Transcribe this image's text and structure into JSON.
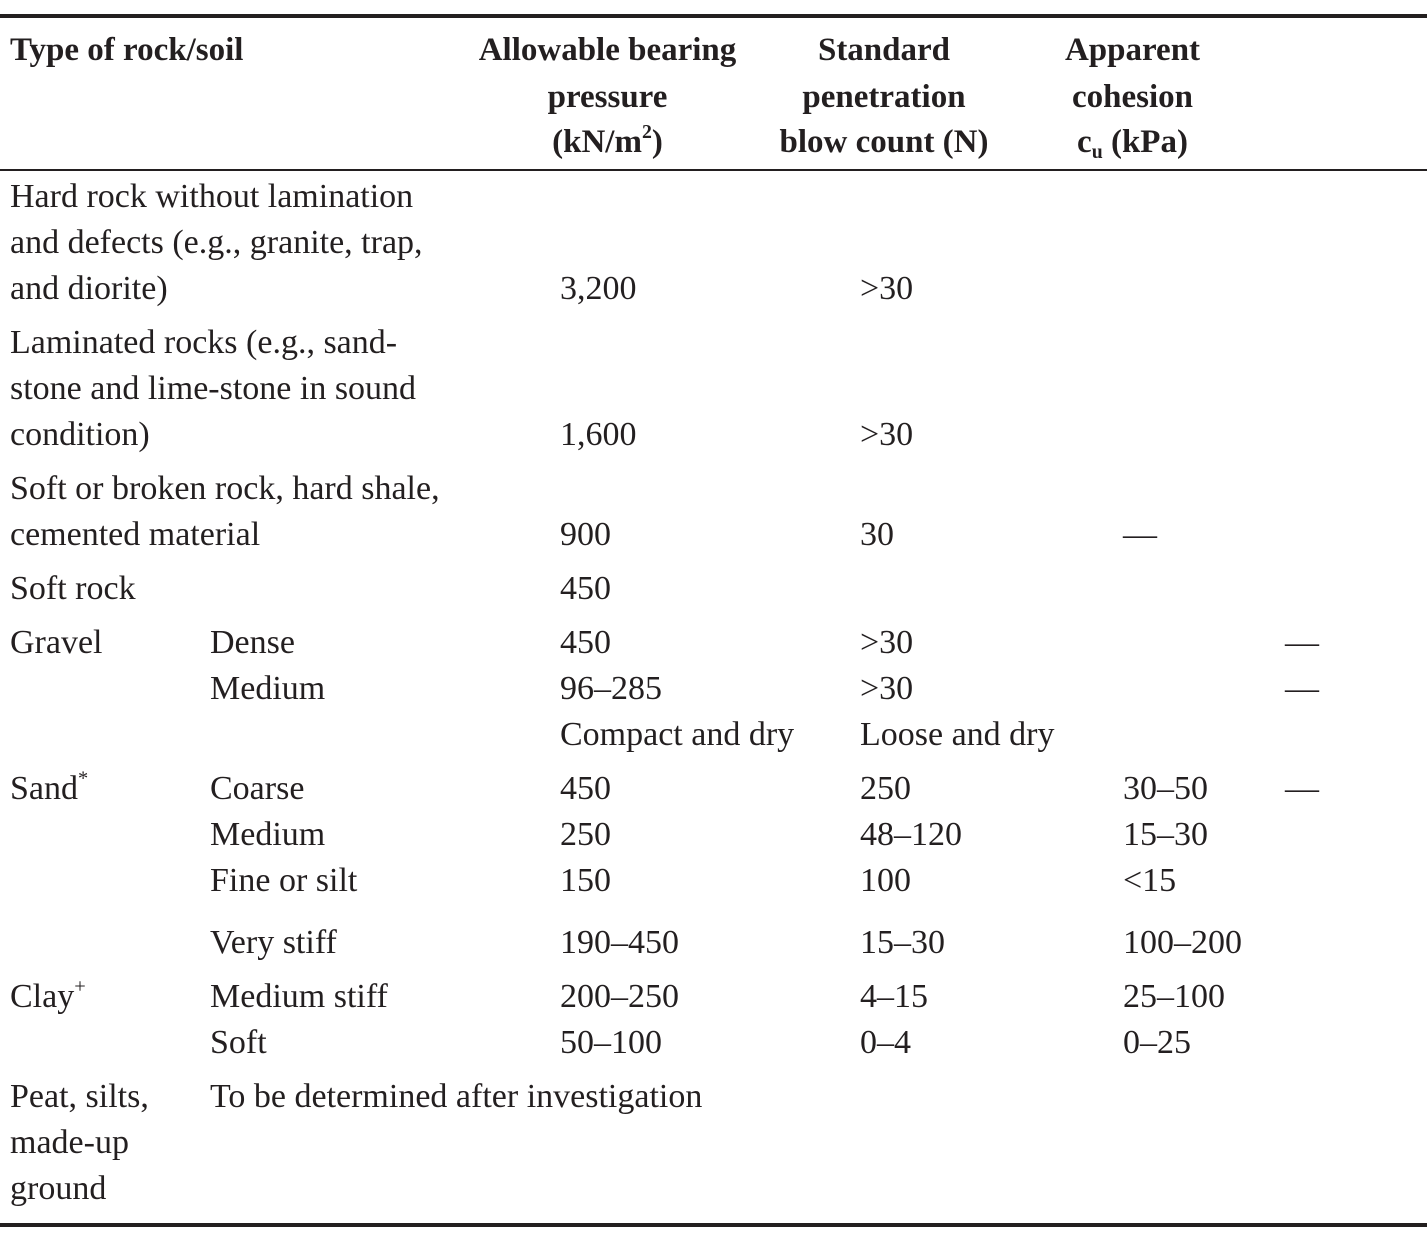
{
  "table": {
    "header": [
      {
        "lines": [
          "Type of rock/soil"
        ]
      },
      {
        "lines": [
          "Allowable bearing",
          "pressure",
          {
            "text": "(kN/m",
            "sup": "2",
            "after": ")"
          }
        ]
      },
      {
        "lines": [
          "Standard",
          "penetration",
          "blow count (N)"
        ]
      },
      {
        "lines": [
          "Apparent",
          "cohesion",
          {
            "text": "c",
            "sub": "u",
            "after": " (kPa)"
          }
        ]
      }
    ],
    "rows": [
      [
        [
          "Hard rock without lamination",
          "and defects (e.g., granite, trap,",
          "and diorite)"
        ],
        null,
        [
          "3,200"
        ],
        [
          ">30"
        ],
        null,
        null
      ],
      [
        [
          "Laminated rocks (e.g., sand-",
          "stone and lime-stone in sound",
          "condition)"
        ],
        null,
        [
          "1,600"
        ],
        [
          ">30"
        ],
        null,
        null
      ],
      [
        [
          "Soft or broken rock, hard shale,",
          "cemented material"
        ],
        null,
        [
          "900"
        ],
        [
          "30"
        ],
        [
          "—"
        ],
        null
      ],
      [
        [
          "Soft rock"
        ],
        null,
        [
          "450"
        ],
        null,
        null,
        null
      ],
      [
        [
          "Gravel"
        ],
        [
          "Dense"
        ],
        [
          "450"
        ],
        [
          ">30"
        ],
        null,
        [
          "—"
        ]
      ],
      [
        null,
        [
          "Medium"
        ],
        [
          "96–285"
        ],
        [
          ">30"
        ],
        null,
        [
          "—"
        ]
      ],
      [
        null,
        null,
        [
          "Compact and dry"
        ],
        [
          "Loose and dry"
        ],
        null,
        null
      ],
      [
        [
          {
            "text": "Sand",
            "sup": "*"
          }
        ],
        [
          "Coarse"
        ],
        [
          "450"
        ],
        [
          "250"
        ],
        [
          "30–50"
        ],
        [
          "—"
        ]
      ],
      [
        null,
        [
          "Medium"
        ],
        [
          "250"
        ],
        [
          "48–120"
        ],
        [
          "15–30"
        ],
        null
      ],
      [
        null,
        [
          "Fine or silt"
        ],
        [
          "150"
        ],
        [
          "100"
        ],
        [
          "<15"
        ],
        null
      ],
      [
        null,
        [
          "Very stiff"
        ],
        [
          "190–450"
        ],
        [
          "15–30"
        ],
        [
          "100–200"
        ],
        null
      ],
      [
        [
          {
            "text": "Clay",
            "sup": "+"
          }
        ],
        [
          "Medium stiff"
        ],
        [
          "200–250"
        ],
        [
          "4–15"
        ],
        [
          "25–100"
        ],
        null
      ],
      [
        null,
        [
          "Soft"
        ],
        [
          "50–100"
        ],
        [
          "0–4"
        ],
        [
          "0–25"
        ],
        null
      ],
      [
        [
          "Peat, silts,",
          "made-up",
          "ground"
        ],
        [
          "To be determined after investigation"
        ],
        null,
        null,
        null,
        null
      ]
    ]
  }
}
